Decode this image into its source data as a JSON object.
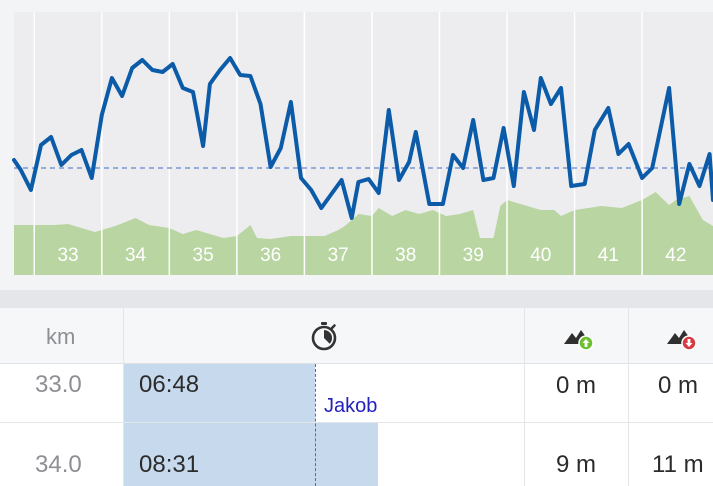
{
  "chart_data": {
    "type": "line",
    "x_unit": "km",
    "x_range": [
      32.2,
      42.55
    ],
    "x_ticks": [
      "33",
      "34",
      "35",
      "36",
      "37",
      "38",
      "39",
      "40",
      "41",
      "42"
    ],
    "line_color": "#0b5ba8",
    "elevation_color": "#b9d6a2",
    "reference_line": {
      "style": "dashed",
      "color": "#0b5ba8"
    },
    "speed_series": [
      [
        32.2,
        160
      ],
      [
        32.3,
        170
      ],
      [
        32.45,
        190
      ],
      [
        32.6,
        145
      ],
      [
        32.75,
        137
      ],
      [
        32.9,
        165
      ],
      [
        33.05,
        155
      ],
      [
        33.2,
        150
      ],
      [
        33.35,
        178
      ],
      [
        33.5,
        115
      ],
      [
        33.65,
        78
      ],
      [
        33.8,
        96
      ],
      [
        33.95,
        68
      ],
      [
        34.1,
        60
      ],
      [
        34.25,
        70
      ],
      [
        34.4,
        72
      ],
      [
        34.55,
        64
      ],
      [
        34.7,
        88
      ],
      [
        34.85,
        92
      ],
      [
        35.0,
        146
      ],
      [
        35.1,
        84
      ],
      [
        35.25,
        70
      ],
      [
        35.4,
        58
      ],
      [
        35.55,
        75
      ],
      [
        35.7,
        76
      ],
      [
        35.85,
        104
      ],
      [
        36.0,
        167
      ],
      [
        36.15,
        148
      ],
      [
        36.3,
        102
      ],
      [
        36.45,
        178
      ],
      [
        36.6,
        190
      ],
      [
        36.75,
        208
      ],
      [
        36.9,
        194
      ],
      [
        37.05,
        180
      ],
      [
        37.2,
        218
      ],
      [
        37.3,
        182
      ],
      [
        37.45,
        179
      ],
      [
        37.6,
        193
      ],
      [
        37.75,
        110
      ],
      [
        37.9,
        180
      ],
      [
        38.05,
        162
      ],
      [
        38.15,
        132
      ],
      [
        38.35,
        204
      ],
      [
        38.55,
        204
      ],
      [
        38.7,
        155
      ],
      [
        38.85,
        168
      ],
      [
        39.0,
        120
      ],
      [
        39.15,
        180
      ],
      [
        39.3,
        178
      ],
      [
        39.45,
        128
      ],
      [
        39.6,
        186
      ],
      [
        39.75,
        92
      ],
      [
        39.9,
        130
      ],
      [
        40.0,
        78
      ],
      [
        40.15,
        104
      ],
      [
        40.3,
        88
      ],
      [
        40.45,
        186
      ],
      [
        40.65,
        184
      ],
      [
        40.8,
        130
      ],
      [
        41.0,
        108
      ],
      [
        41.15,
        154
      ],
      [
        41.3,
        144
      ],
      [
        41.5,
        178
      ],
      [
        41.65,
        168
      ],
      [
        41.9,
        88
      ],
      [
        42.05,
        204
      ],
      [
        42.2,
        164
      ],
      [
        42.35,
        186
      ],
      [
        42.5,
        154
      ],
      [
        42.55,
        200
      ]
    ],
    "elevation_series": [
      [
        32.2,
        225
      ],
      [
        32.8,
        225
      ],
      [
        33.0,
        224
      ],
      [
        33.2,
        228
      ],
      [
        33.4,
        232
      ],
      [
        33.7,
        226
      ],
      [
        34.0,
        218
      ],
      [
        34.2,
        225
      ],
      [
        34.5,
        228
      ],
      [
        34.7,
        234
      ],
      [
        34.9,
        230
      ],
      [
        35.1,
        234
      ],
      [
        35.3,
        238
      ],
      [
        35.5,
        236
      ],
      [
        35.7,
        225
      ],
      [
        35.8,
        238
      ],
      [
        36.0,
        239
      ],
      [
        36.3,
        236
      ],
      [
        36.5,
        236
      ],
      [
        36.8,
        236
      ],
      [
        37.0,
        230
      ],
      [
        37.1,
        226
      ],
      [
        37.3,
        214
      ],
      [
        37.5,
        216
      ],
      [
        37.6,
        208
      ],
      [
        37.8,
        216
      ],
      [
        38.0,
        210
      ],
      [
        38.2,
        214
      ],
      [
        38.4,
        210
      ],
      [
        38.6,
        216
      ],
      [
        38.8,
        214
      ],
      [
        39.0,
        210
      ],
      [
        39.1,
        238
      ],
      [
        39.3,
        238
      ],
      [
        39.4,
        206
      ],
      [
        39.5,
        200
      ],
      [
        39.6,
        202
      ],
      [
        39.8,
        206
      ],
      [
        40.0,
        210
      ],
      [
        40.2,
        210
      ],
      [
        40.3,
        216
      ],
      [
        40.5,
        210
      ],
      [
        40.7,
        208
      ],
      [
        40.9,
        206
      ],
      [
        41.2,
        208
      ],
      [
        41.5,
        200
      ],
      [
        41.7,
        192
      ],
      [
        41.9,
        205
      ],
      [
        42.0,
        200
      ],
      [
        42.2,
        196
      ],
      [
        42.4,
        220
      ],
      [
        42.55,
        226
      ]
    ]
  },
  "table": {
    "headers": {
      "km": "km",
      "time_icon": "stopwatch-icon",
      "ascent_icon": "mountain-up-icon",
      "descent_icon": "mountain-down-icon"
    },
    "rows": [
      {
        "km": "33.0",
        "time": "06:48",
        "ascent": "0 m",
        "descent": "0 m",
        "time_bar_fraction": 0.48
      },
      {
        "km": "34.0",
        "time": "08:31",
        "ascent": "9 m",
        "descent": "11 m",
        "time_bar_fraction": 0.63
      }
    ],
    "runner_label": "Jakob",
    "colors": {
      "time_bar": "#c7d9ec",
      "ascent_badge": "#6cbf2e",
      "descent_badge": "#d63a46"
    }
  }
}
